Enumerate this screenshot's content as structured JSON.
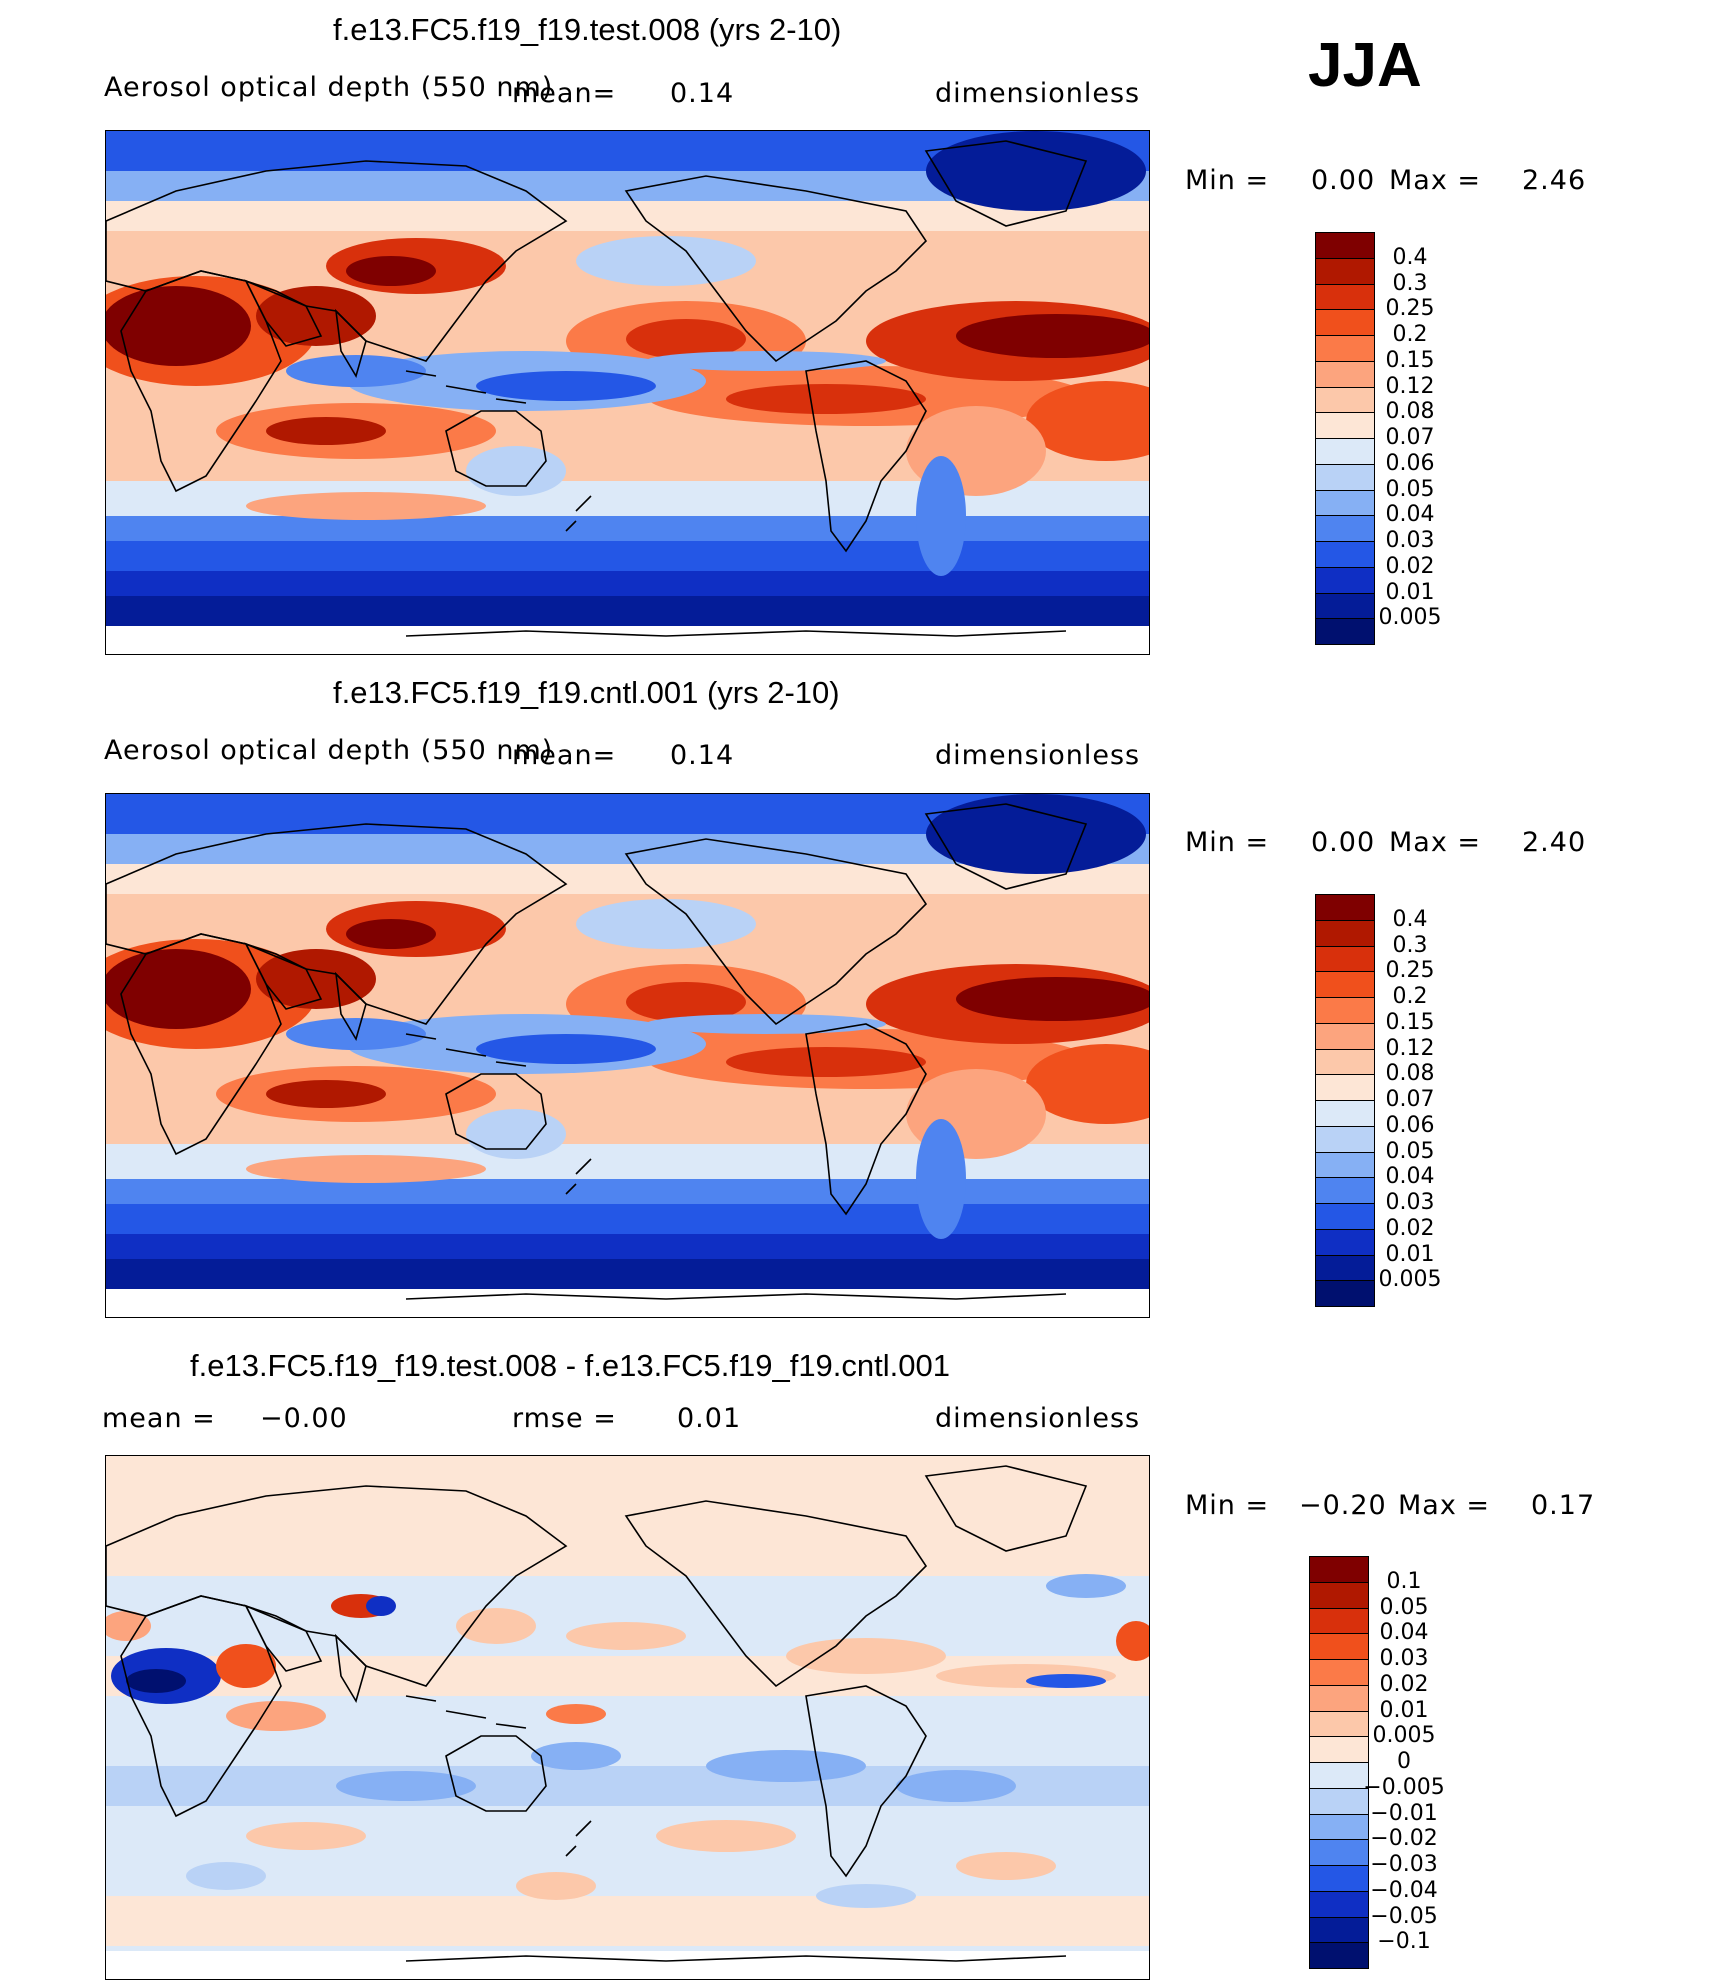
{
  "season": "JJA",
  "panels": [
    {
      "title": "f.e13.FC5.f19_f19.test.008 (yrs 2-10)",
      "left_label": "Aerosol optical depth (550 nm)",
      "mean_label": "mean=",
      "mean_value": "0.14",
      "right_label": "dimensionless",
      "min_label": "Min =",
      "min_value": "0.00",
      "max_label": "Max =",
      "max_value": "2.46"
    },
    {
      "title": "f.e13.FC5.f19_f19.cntl.001 (yrs 2-10)",
      "left_label": "Aerosol optical depth (550 nm)",
      "mean_label": "mean=",
      "mean_value": "0.14",
      "right_label": "dimensionless",
      "min_label": "Min =",
      "min_value": "0.00",
      "max_label": "Max =",
      "max_value": "2.40"
    },
    {
      "title": "f.e13.FC5.f19_f19.test.008 - f.e13.FC5.f19_f19.cntl.001",
      "left_label": "mean =",
      "left_value": "−0.00",
      "rmse_label": "rmse =",
      "rmse_value": "0.01",
      "right_label": "dimensionless",
      "min_label": "Min =",
      "min_value": "−0.20",
      "max_label": "Max =",
      "max_value": "0.17"
    }
  ],
  "colorbars": {
    "aod": {
      "labels": [
        "0.4",
        "0.3",
        "0.25",
        "0.2",
        "0.15",
        "0.12",
        "0.08",
        "0.07",
        "0.06",
        "0.05",
        "0.04",
        "0.03",
        "0.02",
        "0.01",
        "0.005"
      ],
      "colors": [
        "#7f0000",
        "#b01800",
        "#d8300c",
        "#f0501c",
        "#fb7a48",
        "#fca47e",
        "#fcc8aa",
        "#fde6d6",
        "#dce9f8",
        "#b9d2f6",
        "#86b0f4",
        "#4f84f0",
        "#2457e6",
        "#0f2fc4",
        "#041c98",
        "#00106f"
      ]
    },
    "diff": {
      "labels": [
        "0.1",
        "0.05",
        "0.04",
        "0.03",
        "0.02",
        "0.01",
        "0.005",
        "0",
        "−0.005",
        "−0.01",
        "−0.02",
        "−0.03",
        "−0.04",
        "−0.05",
        "−0.1"
      ],
      "colors": [
        "#7f0000",
        "#b01800",
        "#d8300c",
        "#f0501c",
        "#fb7a48",
        "#fca47e",
        "#fcc8aa",
        "#fde6d6",
        "#dce9f8",
        "#b9d2f6",
        "#86b0f4",
        "#4f84f0",
        "#2457e6",
        "#0f2fc4",
        "#041c98",
        "#00106f"
      ]
    }
  },
  "chart_data": [
    {
      "type": "heatmap",
      "title": "f.e13.FC5.f19_f19.test.008 (yrs 2-10)",
      "variable": "Aerosol optical depth (550 nm)",
      "units": "dimensionless",
      "season": "JJA",
      "mean": 0.14,
      "min": 0.0,
      "max": 2.46,
      "contour_levels": [
        0.005,
        0.01,
        0.02,
        0.03,
        0.04,
        0.05,
        0.06,
        0.07,
        0.08,
        0.12,
        0.15,
        0.2,
        0.25,
        0.3,
        0.4
      ]
    },
    {
      "type": "heatmap",
      "title": "f.e13.FC5.f19_f19.cntl.001 (yrs 2-10)",
      "variable": "Aerosol optical depth (550 nm)",
      "units": "dimensionless",
      "season": "JJA",
      "mean": 0.14,
      "min": 0.0,
      "max": 2.4,
      "contour_levels": [
        0.005,
        0.01,
        0.02,
        0.03,
        0.04,
        0.05,
        0.06,
        0.07,
        0.08,
        0.12,
        0.15,
        0.2,
        0.25,
        0.3,
        0.4
      ]
    },
    {
      "type": "heatmap",
      "title": "f.e13.FC5.f19_f19.test.008 - f.e13.FC5.f19_f19.cntl.001",
      "units": "dimensionless",
      "season": "JJA",
      "mean": -0.0,
      "rmse": 0.01,
      "min": -0.2,
      "max": 0.17,
      "contour_levels": [
        -0.1,
        -0.05,
        -0.04,
        -0.03,
        -0.02,
        -0.01,
        -0.005,
        0,
        0.005,
        0.01,
        0.02,
        0.03,
        0.04,
        0.05,
        0.1
      ]
    }
  ]
}
